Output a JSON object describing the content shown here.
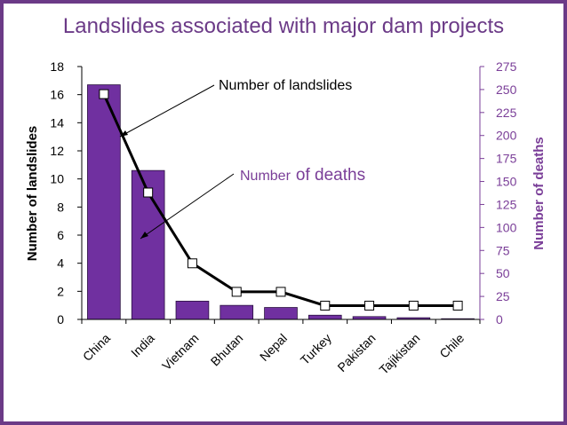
{
  "chart_data": {
    "type": "bar+line",
    "title": "Landslides associated with major dam projects",
    "categories": [
      "China",
      "India",
      "Vietnam",
      "Bhutan",
      "Nepal",
      "Turkey",
      "Pakistan",
      "Tajikistan",
      "Chile"
    ],
    "series": [
      {
        "name": "Number of landslides",
        "type": "bar",
        "axis": "left",
        "values": [
          16.7,
          10.6,
          1.3,
          1.0,
          0.85,
          0.3,
          0.2,
          0.12,
          0.05
        ]
      },
      {
        "name": "Number of deaths",
        "type": "line",
        "axis": "right",
        "values": [
          245,
          138,
          61,
          30,
          30,
          15,
          15,
          15,
          15
        ]
      }
    ],
    "ylabel_left": "Number of landslides",
    "ylabel_right": "Number of deaths",
    "ylim_left": [
      0,
      18
    ],
    "yticks_left": [
      0,
      2,
      4,
      6,
      8,
      10,
      12,
      14,
      16,
      18
    ],
    "ylim_right": [
      0,
      275
    ],
    "yticks_right": [
      0,
      25,
      50,
      75,
      100,
      125,
      150,
      175,
      200,
      225,
      250,
      275
    ],
    "annotations": {
      "landslides_label": "Number of landslides",
      "deaths_label_part1": "Number",
      "deaths_label_part2": "of deaths"
    }
  },
  "colors": {
    "bar": "#7030a0",
    "line": "#000000",
    "accent": "#7a3e98",
    "frame": "#6b3a87"
  }
}
